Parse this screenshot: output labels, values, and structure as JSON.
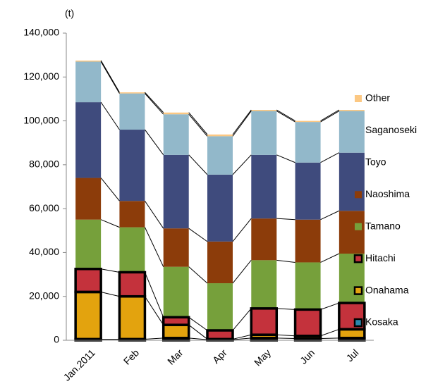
{
  "chart_data": {
    "type": "stacked-bar",
    "y_unit_label": "(t)",
    "categories": [
      "Jan.2011",
      "Feb",
      "Mar",
      "Apr",
      "May",
      "Jun",
      "Jul"
    ],
    "series": [
      {
        "name": "Kosaka",
        "color": "#2a87ad",
        "outline": true,
        "values": [
          500,
          500,
          1000,
          300,
          1000,
          800,
          1000
        ]
      },
      {
        "name": "Onahama",
        "color": "#e3a30e",
        "outline": true,
        "values": [
          21500,
          19500,
          6000,
          200,
          1500,
          1200,
          4000
        ]
      },
      {
        "name": "Hitachi",
        "color": "#c4323c",
        "outline": true,
        "values": [
          10500,
          11000,
          3500,
          4000,
          12000,
          12000,
          12000
        ]
      },
      {
        "name": "Tamano",
        "color": "#76a03b",
        "outline": false,
        "values": [
          22500,
          20500,
          23000,
          21500,
          22000,
          21500,
          22500
        ]
      },
      {
        "name": "Naoshima",
        "color": "#8c3c0a",
        "outline": false,
        "values": [
          19000,
          12000,
          17500,
          19000,
          19000,
          19500,
          19500
        ]
      },
      {
        "name": "Toyo",
        "color": "#3f4b7d",
        "outline": false,
        "values": [
          34500,
          32500,
          33500,
          30500,
          29000,
          26000,
          26500
        ]
      },
      {
        "name": "Saganoseki",
        "color": "#92b8ca",
        "outline": false,
        "values": [
          18500,
          16500,
          18500,
          17500,
          20000,
          18500,
          19000
        ]
      },
      {
        "name": "Other",
        "color": "#fcc883",
        "outline": false,
        "values": [
          500,
          500,
          800,
          800,
          500,
          500,
          500
        ]
      }
    ],
    "ylim": [
      0,
      140000
    ],
    "yticks": [
      0,
      {
        "value": 20000,
        "label": "20,000"
      },
      {
        "value": 40000,
        "label": "40,000"
      },
      {
        "value": 60000,
        "label": "60,000"
      },
      {
        "value": 80000,
        "label": "80,000"
      },
      {
        "value": 100000,
        "label": "100,000"
      },
      {
        "value": 120000,
        "label": "120,000"
      },
      {
        "value": 140000,
        "label": "140,000"
      }
    ],
    "legend": "right",
    "connector_lines": true
  }
}
